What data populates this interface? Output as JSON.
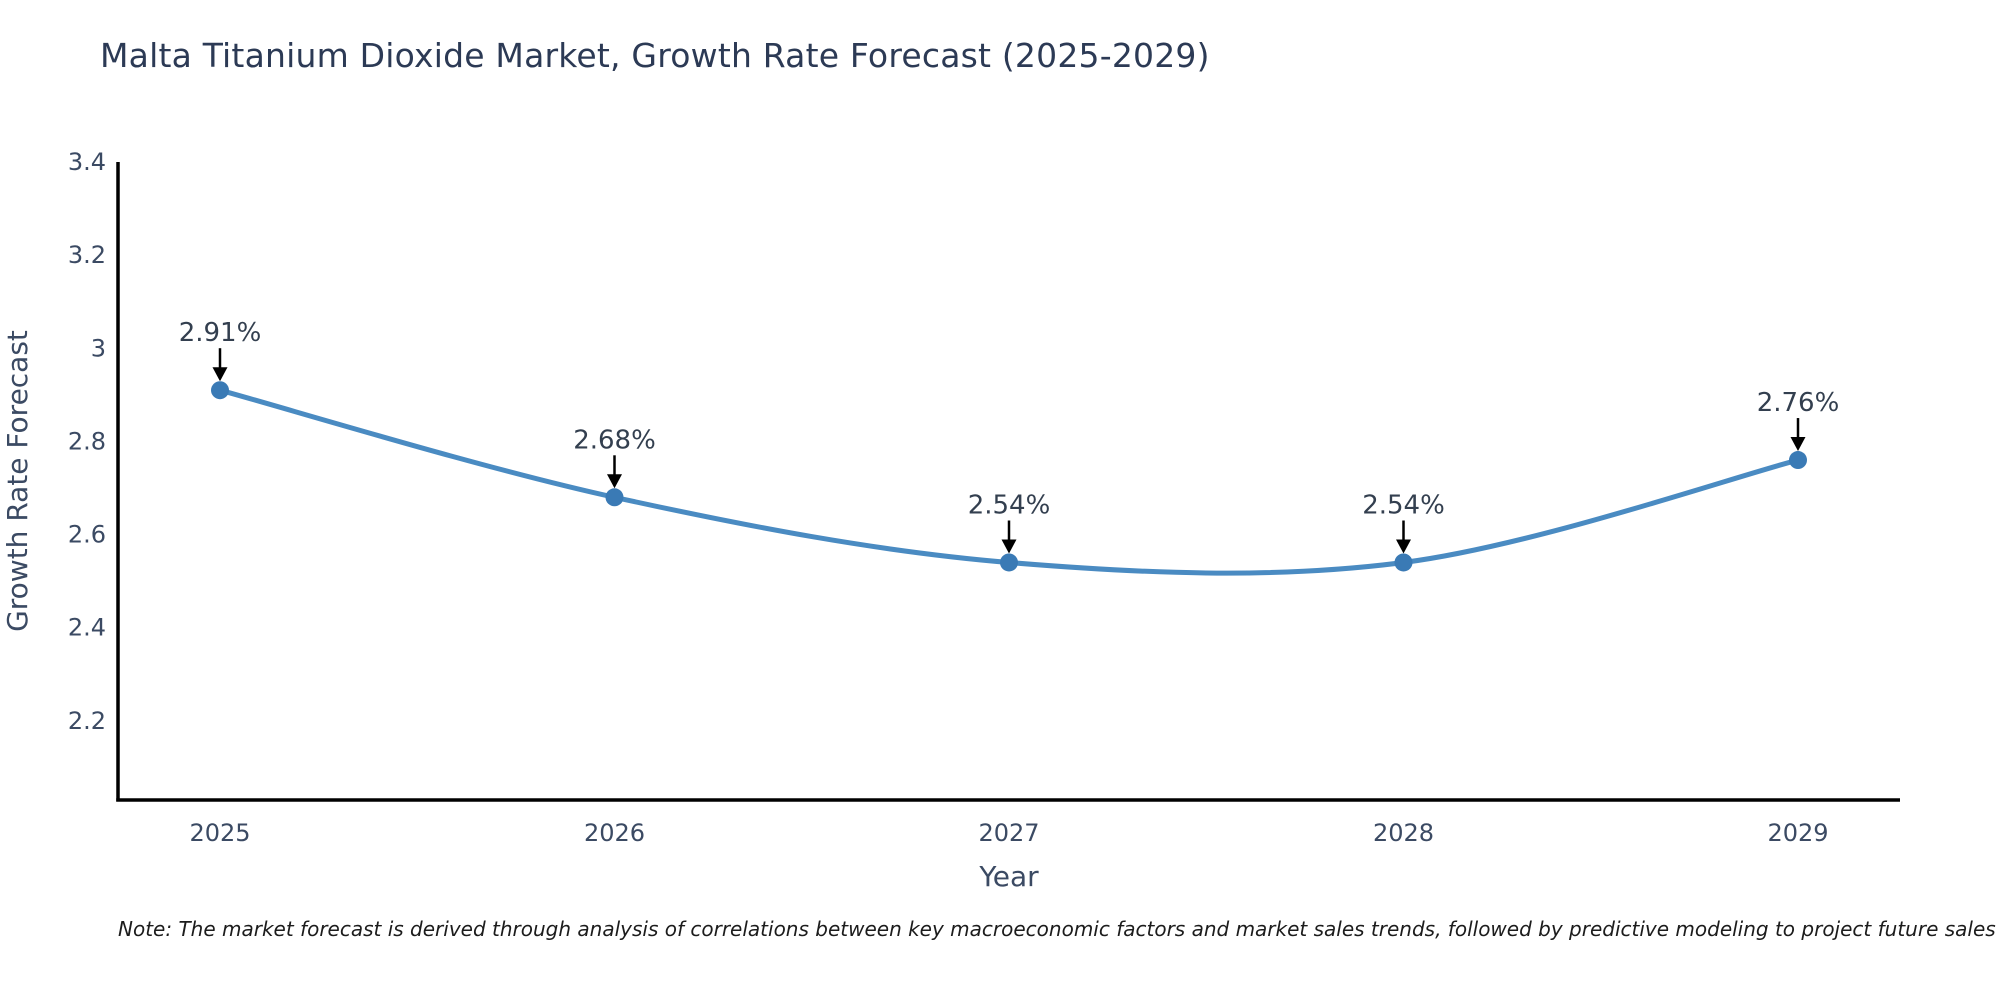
{
  "title": "Malta Titanium Dioxide Market, Growth Rate Forecast (2025-2029)",
  "note": "Note: The market forecast is derived through analysis of correlations between key macroeconomic factors and market sales trends, followed by predictive modeling to project future sales",
  "chart_data": {
    "type": "line",
    "title": "Malta Titanium Dioxide Market, Growth Rate Forecast (2025-2029)",
    "xlabel": "Year",
    "ylabel": "Growth Rate Forecast",
    "categories": [
      2025,
      2026,
      2027,
      2028,
      2029
    ],
    "series": [
      {
        "name": "Growth Rate Forecast",
        "values": [
          2.91,
          2.68,
          2.54,
          2.54,
          2.76
        ]
      }
    ],
    "point_labels": [
      "2.91%",
      "2.68%",
      "2.54%",
      "2.54%",
      "2.76%"
    ],
    "yticks": [
      2.2,
      2.4,
      2.6,
      2.8,
      3.0,
      3.2,
      3.4
    ],
    "ylim": [
      2.03,
      3.4
    ],
    "line_shape": "spline",
    "grid": false,
    "legend": "none",
    "colors": {
      "line": "#4a8bc2",
      "marker": "#3a7ab5",
      "axis": "#000000",
      "text": "#3b4a63",
      "annotation": "#333f4f",
      "arrow": "#000000"
    }
  }
}
